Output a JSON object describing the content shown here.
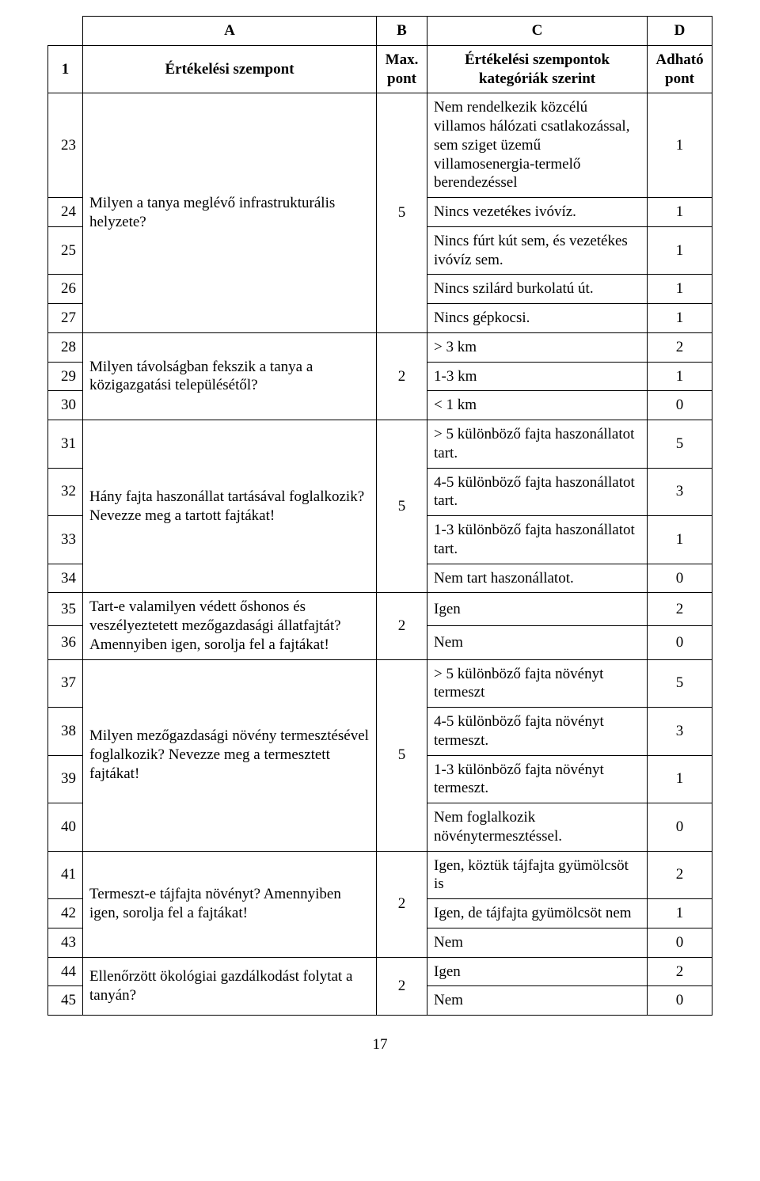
{
  "page_number": "17",
  "header": {
    "A": "A",
    "B": "B",
    "C": "C",
    "D": "D",
    "row1_num": "1",
    "row1_A": "Értékelési szempont",
    "row1_B": "Max. pont",
    "row1_C": "Értékelési szempontok kategóriák szerint",
    "row1_D": "Adható pont"
  },
  "r23": {
    "n": "23",
    "c": "Nem rendelkezik közcélú villamos hálózati csatlakozással, sem sziget üzemű villamosenergia-termelő berendezéssel",
    "d": "1"
  },
  "r24": {
    "n": "24",
    "a": "Milyen a tanya meglévő infrastrukturális helyzete?",
    "b": "5",
    "c": "Nincs vezetékes ivóvíz.",
    "d": "1"
  },
  "r25": {
    "n": "25",
    "c": "Nincs fúrt kút sem, és vezetékes ivóvíz sem.",
    "d": "1"
  },
  "r26": {
    "n": "26",
    "c": "Nincs szilárd burkolatú út.",
    "d": "1"
  },
  "r27": {
    "n": "27",
    "c": "Nincs gépkocsi.",
    "d": "1"
  },
  "r28": {
    "n": "28",
    "c": "> 3 km",
    "d": "2"
  },
  "r29": {
    "n": "29",
    "a": "Milyen távolságban fekszik a tanya a közigazgatási településétől?",
    "b": "2",
    "c": "1-3 km",
    "d": "1"
  },
  "r30": {
    "n": "30",
    "c": "< 1 km",
    "d": "0"
  },
  "r31": {
    "n": "31",
    "c": "> 5 különböző fajta haszonállatot tart.",
    "d": "5"
  },
  "r32": {
    "n": "32",
    "a": "Hány fajta haszonállat tartásával foglalkozik? Nevezze meg a tartott fajtákat!",
    "b": "5",
    "c": "4-5 különböző fajta haszonállatot tart.",
    "d": "3"
  },
  "r33": {
    "n": "33",
    "c": "1-3 különböző fajta haszonállatot tart.",
    "d": "1"
  },
  "r34": {
    "n": "34",
    "c": "Nem tart haszonállatot.",
    "d": "0"
  },
  "r35": {
    "n": "35",
    "a": "Tart-e valamilyen védett őshonos és veszélyeztetett mezőgazdasági állatfajtát? Amennyiben igen, sorolja fel a fajtákat!",
    "b": "2",
    "c": "Igen",
    "d": "2"
  },
  "r36": {
    "n": "36",
    "c": "Nem",
    "d": "0"
  },
  "r37": {
    "n": "37",
    "c": "> 5 különböző fajta növényt termeszt",
    "d": "5"
  },
  "r38": {
    "n": "38",
    "a": "Milyen mezőgazdasági növény termesztésével foglalkozik? Nevezze meg a termesztett fajtákat!",
    "b": "5",
    "c": "4-5 különböző fajta növényt termeszt.",
    "d": "3"
  },
  "r39": {
    "n": "39",
    "c": "1-3 különböző fajta növényt termeszt.",
    "d": "1"
  },
  "r40": {
    "n": "40",
    "c": "Nem foglalkozik növénytermesztéssel.",
    "d": "0"
  },
  "r41": {
    "n": "41",
    "c": "Igen, köztük tájfajta gyümölcsöt is",
    "d": "2"
  },
  "r42": {
    "n": "42",
    "a": "Termeszt-e tájfajta növényt? Amennyiben igen, sorolja fel a fajtákat!",
    "b": "2",
    "c": "Igen, de tájfajta gyümölcsöt nem",
    "d": "1"
  },
  "r43": {
    "n": "43",
    "c": "Nem",
    "d": "0"
  },
  "r44": {
    "n": "44",
    "a": "Ellenőrzött ökológiai gazdálkodást folytat a tanyán?",
    "b": "2",
    "c": "Igen",
    "d": "2"
  },
  "r45": {
    "n": "45",
    "c": "Nem",
    "d": "0"
  }
}
